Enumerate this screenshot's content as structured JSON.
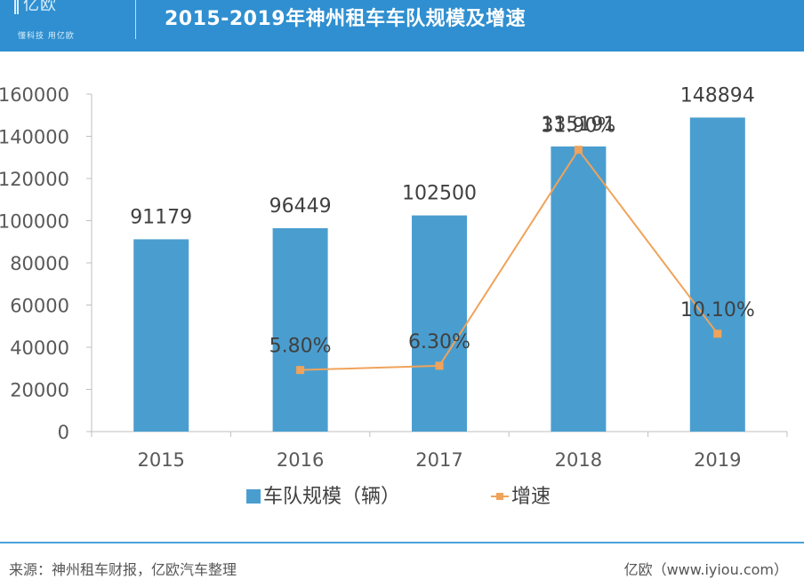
{
  "header": {
    "logo_text": "亿欧",
    "logo_slogan": "懂科技 用亿欧",
    "title": "2015-2019年神州租车车队规模及增速"
  },
  "chart_data": {
    "type": "bar",
    "categories": [
      "2015",
      "2016",
      "2017",
      "2018",
      "2019"
    ],
    "ylim": [
      0,
      160000
    ],
    "yticks": [
      "0",
      "20000",
      "40000",
      "60000",
      "80000",
      "100000",
      "120000",
      "140000",
      "160000"
    ],
    "series": [
      {
        "name": "车队规模（辆）",
        "type": "bar",
        "color": "#4a9ecf",
        "values": [
          91179,
          96449,
          102500,
          135191,
          148894
        ],
        "labels": [
          "91179",
          "96449",
          "102500",
          "135191",
          "148894"
        ]
      },
      {
        "name": "增速",
        "type": "line",
        "color": "#f0a35a",
        "values": [
          null,
          5.8,
          6.3,
          31.9,
          10.1
        ],
        "labels": [
          "",
          "5.80%",
          "6.30%",
          "31.90%",
          "10.10%"
        ]
      }
    ],
    "legend_position": "bottom",
    "grid": false
  },
  "footer": {
    "source": "来源：神州租车财报，亿欧汽车整理",
    "site": "亿欧（www.iyiou.com）"
  }
}
